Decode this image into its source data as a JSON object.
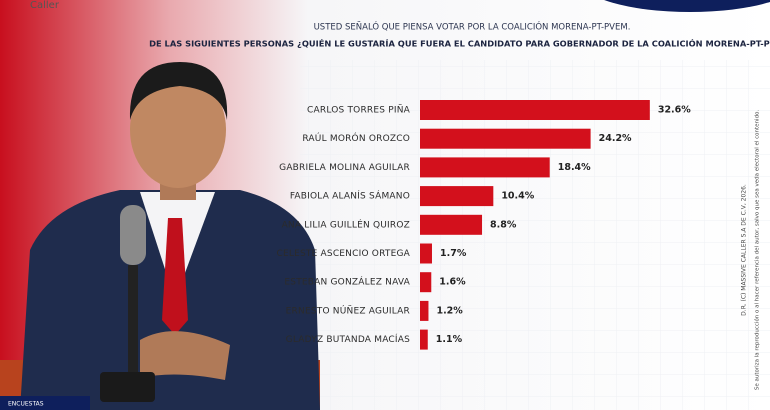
{
  "header": {
    "logo": "Caller"
  },
  "chart_data": {
    "type": "bar",
    "orientation": "horizontal",
    "title": "USTED SEÑALÓ QUE PIENSA VOTAR POR LA COALICIÓN MORENA-PT-PVEM.",
    "subtitle": "DE LAS SIGUIENTES PERSONAS ¿QUIÉN LE GUSTARÍA QUE FUERA EL CANDIDATO PARA GOBERNADOR DE LA COALICIÓN MORENA-PT-PVEM?",
    "categories": [
      "CARLOS TORRES PIÑA",
      "RAÚL MORÓN OROZCO",
      "GABRIELA MOLINA AGUILAR",
      "FABIOLA ALANÍS SÁMANO",
      "ANA LILIA GUILLÉN QUIROZ",
      "CELESTE ASCENCIO ORTEGA",
      "ESTEBAN GONZÁLEZ NAVA",
      "ERNESTO NÚÑEZ AGUILAR",
      "GLADYZ BUTANDA MACÍAS"
    ],
    "values": [
      32.6,
      24.2,
      18.4,
      10.4,
      8.8,
      1.7,
      1.6,
      1.2,
      1.1
    ],
    "value_labels": [
      "32.6%",
      "24.2%",
      "18.4%",
      "10.4%",
      "8.8%",
      "1.7%",
      "1.6%",
      "1.2%",
      "1.1%"
    ],
    "color": "#d3101c"
  },
  "footer": {
    "copyright": "D.R. (C) MASSIVE CALLER S.A DE C.V, 2026.",
    "notice": "Se autoriza la reproducción o al hacer referencia del autor, salvo que sea veda electoral el contenido.",
    "badge": "ENCUESTAS"
  }
}
